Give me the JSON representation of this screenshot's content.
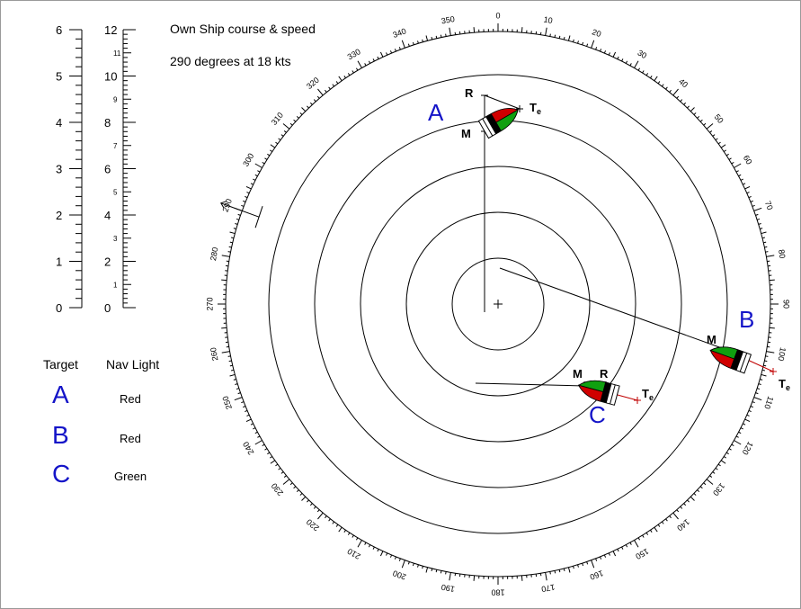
{
  "own_ship": {
    "title": "Own Ship course & speed",
    "course_speed": "290 degrees at 18 kts",
    "course_deg": 290
  },
  "scales": {
    "left_major": [
      "0",
      "1",
      "2",
      "3",
      "4",
      "5",
      "6"
    ],
    "right_major": [
      "0",
      "2",
      "4",
      "6",
      "8",
      "10",
      "12"
    ],
    "right_minor": [
      "1",
      "3",
      "5",
      "7",
      "9",
      "11"
    ]
  },
  "legend": {
    "col_target": "Target",
    "col_nav_light": "Nav Light",
    "rows": [
      {
        "target": "A",
        "light": "Red"
      },
      {
        "target": "B",
        "light": "Red"
      },
      {
        "target": "C",
        "light": "Green"
      }
    ]
  },
  "bearing_labels": [
    "0",
    "10",
    "20",
    "30",
    "40",
    "50",
    "60",
    "70",
    "80",
    "90",
    "100",
    "110",
    "120",
    "130",
    "140",
    "150",
    "160",
    "170",
    "180",
    "190",
    "200",
    "210",
    "220",
    "230",
    "240",
    "250",
    "260",
    "270",
    "280",
    "290",
    "300",
    "310",
    "320",
    "330",
    "340",
    "350"
  ],
  "plot_labels": {
    "targets": [
      "A",
      "B",
      "C"
    ],
    "r": "R",
    "m": "M",
    "te": "T",
    "te_sub": "e"
  },
  "colors": {
    "target_letter": "#1414c8",
    "vessel_port": "#d00000",
    "vessel_starboard": "#10a010",
    "true_vector": "#c00000",
    "rings": "#000000"
  }
}
